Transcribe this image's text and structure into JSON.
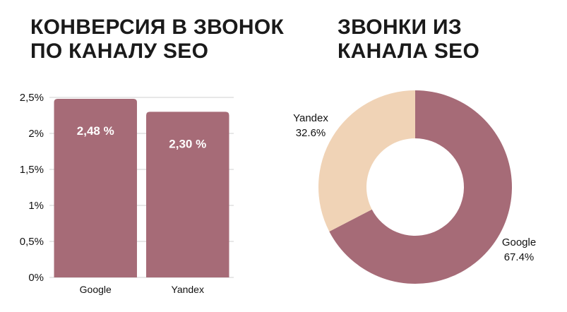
{
  "titles": {
    "left_line1": "КОНВЕРСИЯ В ЗВОНОК",
    "left_line2": "ПО КАНАЛУ SEO",
    "right_line1": "ЗВОНКИ ИЗ",
    "right_line2": "КАНАЛА SEO"
  },
  "colors": {
    "bar": "#a66b77",
    "google_slice": "#a66b77",
    "yandex_slice": "#f0d3b6",
    "grid": "#cfcfcf"
  },
  "chart_data": [
    {
      "type": "bar",
      "categories": [
        "Google",
        "Yandex"
      ],
      "values": [
        2.48,
        2.3
      ],
      "data_labels": [
        "2,48 %",
        "2,30 %"
      ],
      "yticks": [
        0,
        0.5,
        1,
        1.5,
        2,
        2.5
      ],
      "ytick_labels": [
        "0%",
        "0,5%",
        "1%",
        "1,5%",
        "2%",
        "2,5%"
      ],
      "ylim": [
        0,
        2.5
      ],
      "grid": true
    },
    {
      "type": "pie",
      "donut": true,
      "slices": [
        {
          "label": "Google",
          "value": 67.4,
          "value_label": "67.4%"
        },
        {
          "label": "Yandex",
          "value": 32.6,
          "value_label": "32.6%"
        }
      ]
    }
  ]
}
